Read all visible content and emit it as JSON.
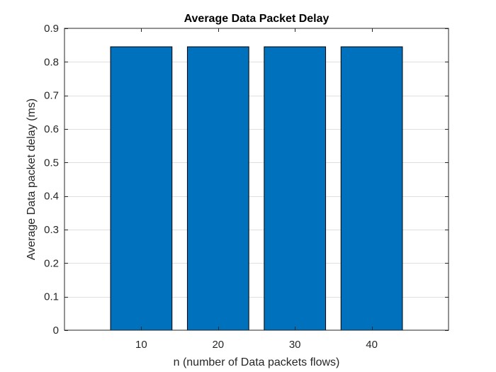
{
  "chart_data": {
    "type": "bar",
    "title": "Average Data Packet Delay",
    "xlabel": "n (number of Data packets flows)",
    "ylabel": "Average Data packet delay (ms)",
    "categories": [
      "10",
      "20",
      "30",
      "40"
    ],
    "values": [
      0.845,
      0.845,
      0.845,
      0.845
    ],
    "xlim": [
      0,
      50
    ],
    "ylim": [
      0,
      0.9
    ],
    "yticks": [
      "0",
      "0.1",
      "0.2",
      "0.3",
      "0.4",
      "0.5",
      "0.6",
      "0.7",
      "0.8",
      "0.9"
    ],
    "grid": true,
    "colors": {
      "bar_fill": "#0072BD",
      "bar_edge": "#000000",
      "axes": "#262626",
      "grid": "#DFDFDF"
    }
  }
}
